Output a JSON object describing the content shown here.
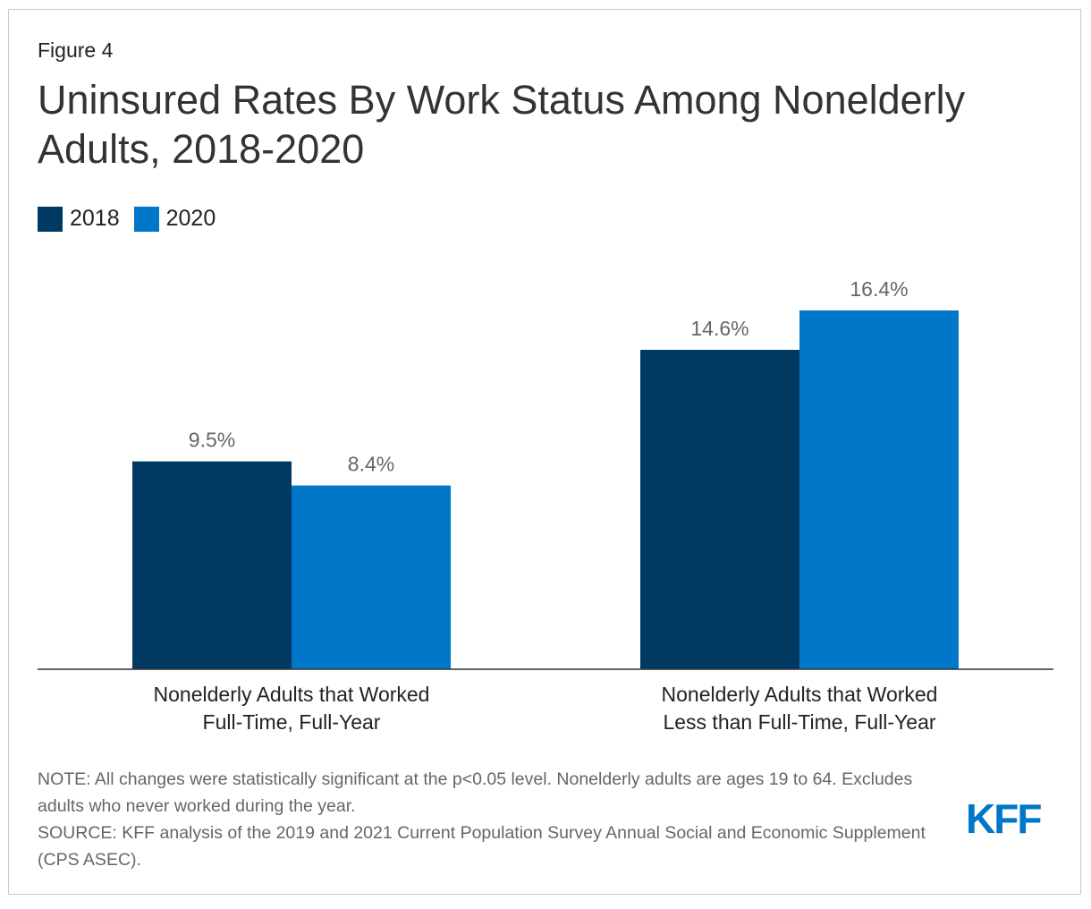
{
  "figure_label": "Figure 4",
  "title": "Uninsured Rates By Work Status Among Nonelderly Adults, 2018-2020",
  "legend": [
    {
      "label": "2018",
      "color": "#003a63"
    },
    {
      "label": "2020",
      "color": "#0077c8"
    }
  ],
  "note": "NOTE: All changes were statistically significant at the p<0.05 level. Nonelderly adults are ages 19 to 64. Excludes adults who never worked during the year.",
  "source": "SOURCE: KFF analysis of the 2019 and 2021 Current Population Survey Annual Social and Economic Supplement (CPS ASEC).",
  "logo_text": "KFF",
  "chart_data": {
    "type": "bar",
    "title": "Uninsured Rates By Work Status Among Nonelderly Adults, 2018-2020",
    "xlabel": "",
    "ylabel": "",
    "ylim": [
      0,
      16.4
    ],
    "grid": false,
    "legend_position": "top-left",
    "categories": [
      [
        "Nonelderly Adults that Worked",
        "Full-Time, Full-Year"
      ],
      [
        "Nonelderly Adults that Worked",
        "Less than Full-Time, Full-Year"
      ]
    ],
    "series": [
      {
        "name": "2018",
        "color": "#003a63",
        "values": [
          9.5,
          14.6
        ],
        "labels": [
          "9.5%",
          "14.6%"
        ]
      },
      {
        "name": "2020",
        "color": "#0077c8",
        "values": [
          8.4,
          16.4
        ],
        "labels": [
          "8.4%",
          "16.4%"
        ]
      }
    ]
  }
}
